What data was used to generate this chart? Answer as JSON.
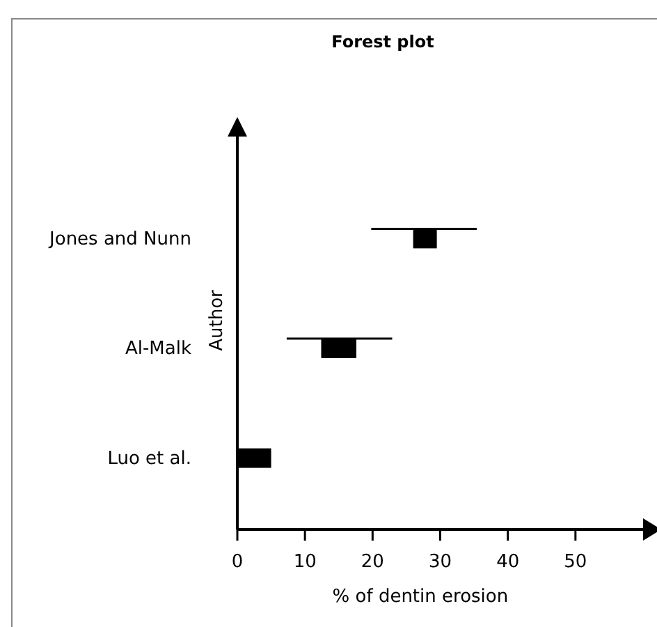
{
  "chart_data": {
    "type": "bar",
    "orientation": "horizontal",
    "title": "Forest plot",
    "xlabel": "% of dentin erosion",
    "ylabel": "Author",
    "categories": [
      "Jones and Nunn",
      "Al-Malk",
      "Luo et al."
    ],
    "base": [
      26,
      12.4,
      0
    ],
    "values": [
      3.5,
      5.2,
      5
    ],
    "errors": [
      [
        19.8,
        35.4
      ],
      [
        7.3,
        22.9
      ],
      null
    ],
    "color": "#000000",
    "xlim": [
      0,
      60
    ],
    "xticks": [
      0,
      10,
      20,
      30,
      40,
      50
    ]
  }
}
